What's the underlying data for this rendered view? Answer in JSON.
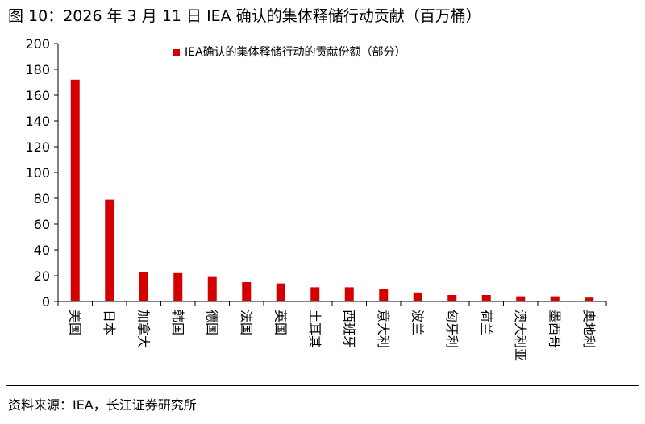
{
  "figure": {
    "title": "图 10：2026 年 3 月 11 日 IEA 确认的集体释储行动贡献（百万桶）",
    "source": "资料来源：IEA，长江证券研究所"
  },
  "colors": {
    "bar": "#d40000",
    "axis": "#000000"
  },
  "chart_data": {
    "type": "bar",
    "title": "图 10：2026 年 3 月 11 日 IEA 确认的集体释储行动贡献（百万桶）",
    "xlabel": "",
    "ylabel": "",
    "ylim": [
      0,
      200
    ],
    "yticks": [
      0,
      20,
      40,
      60,
      80,
      100,
      120,
      140,
      160,
      180,
      200
    ],
    "grid": false,
    "legend_position": "top-center",
    "categories": [
      "美国",
      "日本",
      "加拿大",
      "韩国",
      "德国",
      "法国",
      "英国",
      "土耳其",
      "西班牙",
      "意大利",
      "波兰",
      "匈牙利",
      "荷兰",
      "澳大利亚",
      "墨西哥",
      "奥地利"
    ],
    "series": [
      {
        "name": "IEA确认的集体释储行动的贡献份额（部分）",
        "values": [
          172,
          79,
          23,
          22,
          19,
          15,
          14,
          11,
          11,
          10,
          7,
          5,
          5,
          4,
          4,
          3
        ]
      }
    ]
  }
}
